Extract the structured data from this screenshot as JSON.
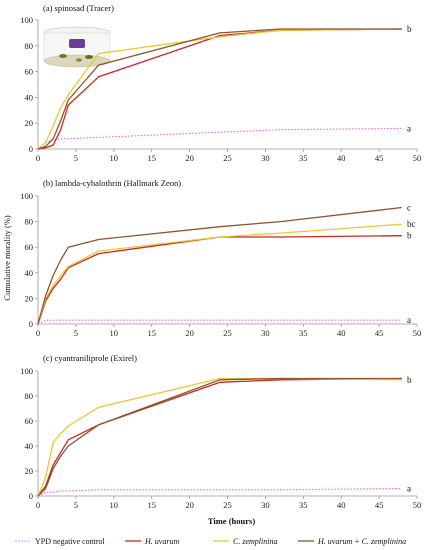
{
  "chart_data": [
    {
      "type": "line",
      "title": "(a) spinosad  (Tracer)",
      "xlim": [
        0,
        50
      ],
      "ylim": [
        0,
        100
      ],
      "xticks": [
        0,
        5,
        10,
        15,
        20,
        25,
        30,
        35,
        40,
        45,
        50
      ],
      "yticks": [
        0,
        20,
        40,
        60,
        80,
        100
      ],
      "grid": false,
      "series": [
        {
          "key": "ypd",
          "x": [
            0,
            1,
            2,
            3,
            4,
            8,
            24,
            32,
            48
          ],
          "y": [
            0,
            5,
            7,
            8,
            8,
            9,
            13,
            15,
            16
          ],
          "end_label": "a"
        },
        {
          "key": "hu",
          "x": [
            0,
            1,
            2,
            3,
            4,
            8,
            24,
            32,
            48
          ],
          "y": [
            0,
            1,
            3,
            15,
            34,
            56,
            88,
            92,
            93
          ],
          "end_label": ""
        },
        {
          "key": "cz",
          "x": [
            0,
            1,
            2,
            3,
            4,
            8,
            24,
            32,
            48
          ],
          "y": [
            0,
            5,
            18,
            32,
            42,
            74,
            87,
            92,
            93
          ],
          "end_label": ""
        },
        {
          "key": "mix",
          "x": [
            0,
            1,
            2,
            3,
            4,
            8,
            24,
            32,
            48
          ],
          "y": [
            0,
            2,
            8,
            22,
            38,
            65,
            90,
            93,
            93
          ],
          "end_label": "b"
        }
      ]
    },
    {
      "type": "line",
      "title": "(b) lambda-cyhalothrin  (Hallmark Zeon)",
      "xlim": [
        0,
        50
      ],
      "ylim": [
        0,
        100
      ],
      "xticks": [
        0,
        5,
        10,
        15,
        20,
        25,
        30,
        35,
        40,
        45,
        50
      ],
      "yticks": [
        0,
        20,
        40,
        60,
        80,
        100
      ],
      "grid": false,
      "series": [
        {
          "key": "ypd",
          "x": [
            0,
            1,
            2,
            3,
            4,
            8,
            24,
            32,
            48
          ],
          "y": [
            0,
            3,
            3,
            3,
            3,
            3,
            3,
            3,
            3
          ],
          "end_label": "a"
        },
        {
          "key": "hu",
          "x": [
            0,
            1,
            2,
            3,
            4,
            8,
            24,
            32,
            48
          ],
          "y": [
            0,
            18,
            28,
            35,
            44,
            55,
            68,
            68,
            69
          ],
          "end_label": "b"
        },
        {
          "key": "cz",
          "x": [
            0,
            1,
            2,
            3,
            4,
            8,
            24,
            32,
            48
          ],
          "y": [
            0,
            20,
            30,
            38,
            45,
            57,
            68,
            71,
            78
          ],
          "end_label": "bc"
        },
        {
          "key": "mix",
          "x": [
            0,
            1,
            2,
            3,
            4,
            8,
            24,
            32,
            48
          ],
          "y": [
            0,
            22,
            38,
            50,
            60,
            66,
            76,
            80,
            91
          ],
          "end_label": "c"
        }
      ]
    },
    {
      "type": "line",
      "title": "(c) cyantraniliprole  (Exirel)",
      "xlim": [
        0,
        50
      ],
      "ylim": [
        0,
        100
      ],
      "xticks": [
        0,
        5,
        10,
        15,
        20,
        25,
        30,
        35,
        40,
        45,
        50
      ],
      "yticks": [
        0,
        20,
        40,
        60,
        80,
        100
      ],
      "xlabel": "Time (hours)",
      "grid": false,
      "series": [
        {
          "key": "ypd",
          "x": [
            0,
            1,
            2,
            3,
            4,
            8,
            24,
            32,
            48
          ],
          "y": [
            0,
            3,
            3,
            4,
            4,
            5,
            5,
            5,
            6
          ],
          "end_label": "a"
        },
        {
          "key": "hu",
          "x": [
            0,
            1,
            2,
            3,
            4,
            8,
            24,
            32,
            48
          ],
          "y": [
            0,
            8,
            25,
            35,
            45,
            57,
            91,
            93,
            94
          ],
          "end_label": ""
        },
        {
          "key": "cz",
          "x": [
            0,
            1,
            2,
            3,
            4,
            8,
            24,
            32,
            48
          ],
          "y": [
            0,
            15,
            43,
            50,
            56,
            71,
            94,
            94,
            93
          ],
          "end_label": "b"
        },
        {
          "key": "mix",
          "x": [
            0,
            1,
            2,
            3,
            4,
            8,
            24,
            32,
            48
          ],
          "y": [
            0,
            6,
            22,
            32,
            40,
            57,
            93,
            94,
            94
          ],
          "end_label": ""
        }
      ]
    }
  ],
  "shared_ylabel": "Cumulative morality (%)",
  "styles": {
    "ypd": {
      "color": "#e070e0",
      "dash": "1.6,1.6",
      "width": 1.1
    },
    "hu": {
      "color": "#c8281e",
      "dash": "",
      "width": 1.3
    },
    "cz": {
      "color": "#ecc834",
      "dash": "",
      "width": 1.3
    },
    "mix": {
      "color": "#8b5530",
      "dash": "",
      "width": 1.3
    }
  },
  "legend": {
    "placement": "bottom",
    "items": [
      {
        "key": "ypd",
        "label": "YPD negative control",
        "italic": false
      },
      {
        "key": "hu",
        "label": "H. uvarum",
        "italic": true
      },
      {
        "key": "cz",
        "label": "C. zemplinina",
        "italic": true
      },
      {
        "key": "mix",
        "label": "H. uvarum + C. zemplinina",
        "italic": true
      }
    ]
  },
  "inset_image": {
    "panel": 0,
    "depicts": "insect-cage-photo-icon"
  }
}
